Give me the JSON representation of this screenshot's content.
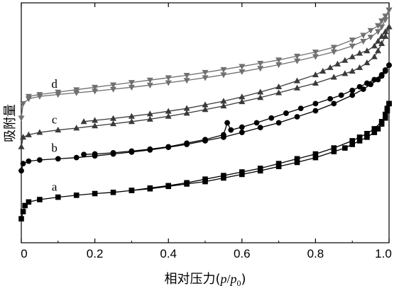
{
  "chart_data": {
    "type": "line",
    "title": "",
    "xlabel": "相对压力(p/p0)",
    "xlabel_parts": {
      "prefix": "相对压力(",
      "p": "p",
      "slash": "/",
      "p0": "p",
      "sub": "0",
      "suffix": ")"
    },
    "ylabel": "吸附量",
    "xlim": [
      0,
      1.0
    ],
    "ylim": [
      0,
      1.0
    ],
    "x_ticks": [
      0,
      0.2,
      0.4,
      0.6,
      0.8,
      1.0
    ],
    "x_tick_labels": [
      "0",
      "0.2",
      "0.4",
      "0.6",
      "0.8",
      "1.0"
    ],
    "y_ticks_labeled": false,
    "grid": false,
    "legend": "none",
    "series": [
      {
        "name": "a",
        "marker": "square",
        "color": "#000000",
        "adsorption": {
          "x": [
            0.0,
            0.005,
            0.01,
            0.02,
            0.05,
            0.1,
            0.15,
            0.2,
            0.25,
            0.3,
            0.35,
            0.4,
            0.45,
            0.5,
            0.55,
            0.6,
            0.65,
            0.7,
            0.75,
            0.8,
            0.85,
            0.88,
            0.9,
            0.92,
            0.94,
            0.96,
            0.97,
            0.98,
            0.99,
            0.995,
            1.0
          ],
          "y": [
            0.1,
            0.13,
            0.155,
            0.17,
            0.18,
            0.19,
            0.198,
            0.205,
            0.21,
            0.218,
            0.225,
            0.235,
            0.245,
            0.255,
            0.27,
            0.285,
            0.3,
            0.318,
            0.335,
            0.355,
            0.38,
            0.395,
            0.41,
            0.425,
            0.44,
            0.46,
            0.475,
            0.495,
            0.52,
            0.55,
            0.58
          ]
        },
        "desorption": {
          "x": [
            1.0,
            0.995,
            0.99,
            0.98,
            0.96,
            0.94,
            0.92,
            0.9,
            0.85,
            0.8,
            0.75,
            0.7,
            0.65,
            0.6,
            0.55,
            0.5,
            0.45,
            0.4,
            0.35,
            0.3
          ],
          "y": [
            0.58,
            0.56,
            0.535,
            0.505,
            0.475,
            0.455,
            0.44,
            0.425,
            0.395,
            0.37,
            0.35,
            0.33,
            0.31,
            0.295,
            0.28,
            0.265,
            0.25,
            0.238,
            0.228,
            0.218
          ]
        }
      },
      {
        "name": "b",
        "marker": "circle",
        "color": "#000000",
        "adsorption": {
          "x": [
            0.0,
            0.005,
            0.02,
            0.05,
            0.1,
            0.15,
            0.2,
            0.25,
            0.3,
            0.35,
            0.4,
            0.45,
            0.5,
            0.55,
            0.6,
            0.65,
            0.7,
            0.75,
            0.8,
            0.85,
            0.9,
            0.93,
            0.95,
            0.97,
            0.98,
            0.99,
            1.0
          ],
          "y": [
            0.3,
            0.33,
            0.34,
            0.345,
            0.35,
            0.355,
            0.362,
            0.37,
            0.378,
            0.387,
            0.398,
            0.41,
            0.425,
            0.44,
            0.46,
            0.48,
            0.5,
            0.525,
            0.55,
            0.58,
            0.615,
            0.64,
            0.66,
            0.68,
            0.695,
            0.715,
            0.74
          ]
        },
        "desorption": {
          "x": [
            1.0,
            0.99,
            0.98,
            0.96,
            0.94,
            0.92,
            0.9,
            0.87,
            0.84,
            0.8,
            0.76,
            0.72,
            0.68,
            0.64,
            0.6,
            0.57,
            0.56,
            0.55,
            0.5,
            0.45,
            0.4,
            0.35,
            0.3,
            0.25,
            0.2,
            0.17
          ],
          "y": [
            0.74,
            0.72,
            0.7,
            0.68,
            0.665,
            0.65,
            0.635,
            0.615,
            0.6,
            0.58,
            0.56,
            0.54,
            0.52,
            0.5,
            0.482,
            0.47,
            0.5,
            0.45,
            0.43,
            0.415,
            0.4,
            0.39,
            0.382,
            0.375,
            0.37,
            0.368
          ]
        }
      },
      {
        "name": "c",
        "marker": "triangle-up",
        "color": "#3a3a3a",
        "adsorption": {
          "x": [
            0.0,
            0.005,
            0.02,
            0.05,
            0.1,
            0.15,
            0.2,
            0.25,
            0.3,
            0.35,
            0.4,
            0.45,
            0.5,
            0.55,
            0.6,
            0.65,
            0.7,
            0.75,
            0.8,
            0.85,
            0.88,
            0.9,
            0.92,
            0.94,
            0.96,
            0.97,
            0.98,
            0.99,
            1.0
          ],
          "y": [
            0.4,
            0.44,
            0.45,
            0.46,
            0.47,
            0.478,
            0.487,
            0.496,
            0.505,
            0.515,
            0.527,
            0.54,
            0.555,
            0.57,
            0.588,
            0.605,
            0.625,
            0.645,
            0.665,
            0.69,
            0.705,
            0.715,
            0.73,
            0.75,
            0.775,
            0.8,
            0.83,
            0.86,
            0.9
          ]
        },
        "desorption": {
          "x": [
            1.0,
            0.99,
            0.98,
            0.97,
            0.96,
            0.94,
            0.92,
            0.9,
            0.88,
            0.86,
            0.84,
            0.82,
            0.8,
            0.75,
            0.7,
            0.65,
            0.6,
            0.55,
            0.5,
            0.45,
            0.4,
            0.35,
            0.3,
            0.25,
            0.2,
            0.17
          ],
          "y": [
            0.9,
            0.88,
            0.86,
            0.84,
            0.82,
            0.8,
            0.79,
            0.775,
            0.76,
            0.745,
            0.73,
            0.715,
            0.7,
            0.675,
            0.65,
            0.628,
            0.608,
            0.59,
            0.575,
            0.56,
            0.548,
            0.537,
            0.527,
            0.518,
            0.51,
            0.505
          ]
        }
      },
      {
        "name": "d",
        "marker": "triangle-down",
        "color": "#707070",
        "adsorption": {
          "x": [
            0.0,
            0.005,
            0.02,
            0.05,
            0.1,
            0.15,
            0.2,
            0.25,
            0.3,
            0.35,
            0.4,
            0.45,
            0.5,
            0.55,
            0.6,
            0.65,
            0.7,
            0.75,
            0.8,
            0.85,
            0.9,
            0.93,
            0.95,
            0.97,
            0.98,
            0.99,
            1.0
          ],
          "y": [
            0.52,
            0.58,
            0.6,
            0.61,
            0.618,
            0.625,
            0.632,
            0.64,
            0.648,
            0.657,
            0.667,
            0.677,
            0.688,
            0.7,
            0.713,
            0.727,
            0.742,
            0.758,
            0.776,
            0.796,
            0.82,
            0.84,
            0.857,
            0.88,
            0.9,
            0.93,
            0.97
          ]
        },
        "desorption": {
          "x": [
            1.0,
            0.99,
            0.98,
            0.97,
            0.95,
            0.93,
            0.9,
            0.85,
            0.8,
            0.75,
            0.7,
            0.65,
            0.6,
            0.55,
            0.5,
            0.45,
            0.4,
            0.35,
            0.3,
            0.25,
            0.2,
            0.15,
            0.1,
            0.05,
            0.02
          ],
          "y": [
            0.97,
            0.945,
            0.925,
            0.905,
            0.885,
            0.865,
            0.845,
            0.815,
            0.795,
            0.778,
            0.762,
            0.748,
            0.735,
            0.722,
            0.71,
            0.698,
            0.688,
            0.678,
            0.668,
            0.658,
            0.648,
            0.638,
            0.628,
            0.618,
            0.61
          ]
        }
      }
    ],
    "annotations": [
      {
        "text": "a",
        "series": "a"
      },
      {
        "text": "b",
        "series": "b"
      },
      {
        "text": "c",
        "series": "c"
      },
      {
        "text": "d",
        "series": "d"
      }
    ]
  }
}
